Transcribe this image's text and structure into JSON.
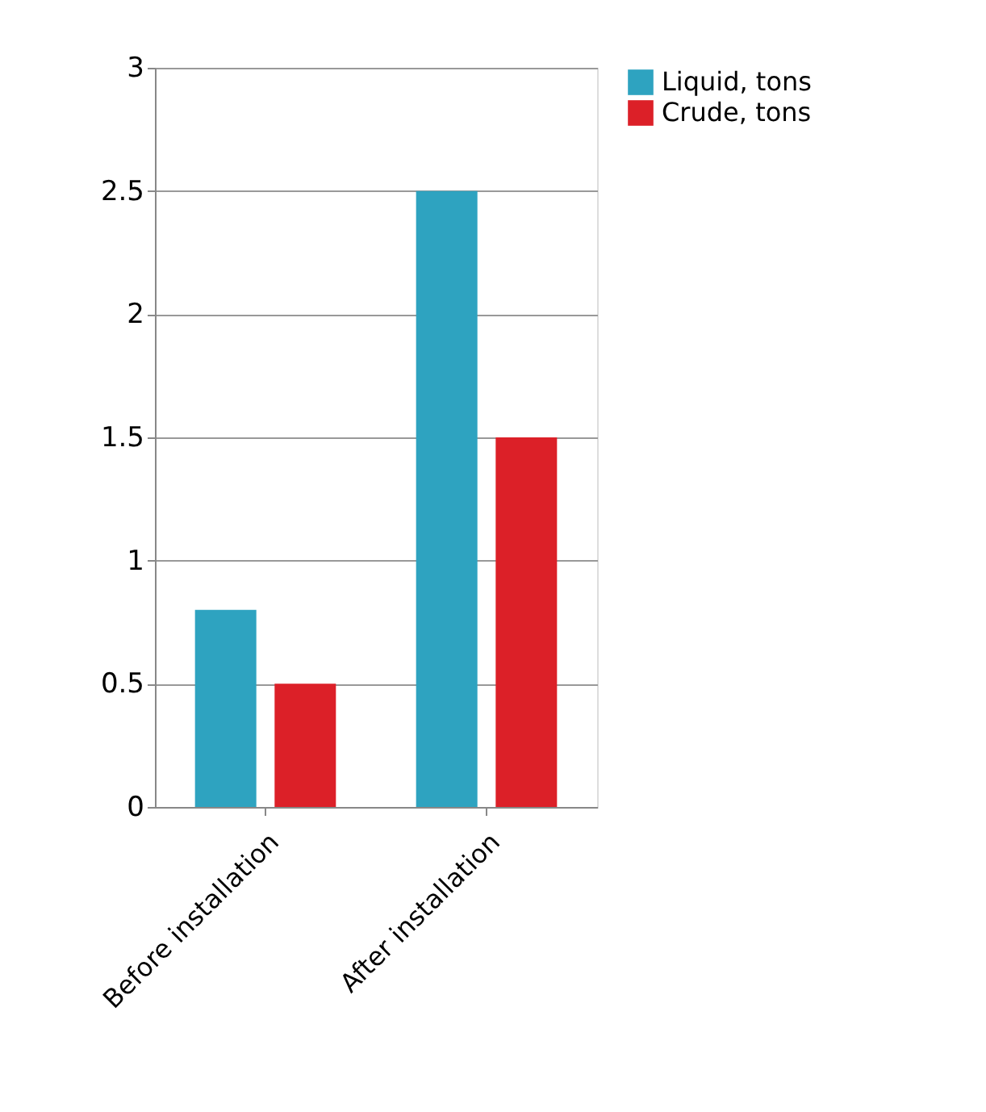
{
  "chart_data": {
    "type": "bar",
    "categories": [
      "Before installation",
      "After installation"
    ],
    "series": [
      {
        "name": "Liquid, tons",
        "color": "#2ea3c0",
        "values": [
          0.8,
          2.5
        ]
      },
      {
        "name": "Crude, tons",
        "color": "#dc2028",
        "values": [
          0.5,
          1.5
        ]
      }
    ],
    "ylim": [
      0,
      3
    ],
    "yticks": [
      0,
      0.5,
      1,
      1.5,
      2,
      2.5,
      3
    ],
    "grid": "y",
    "legend": "right"
  }
}
